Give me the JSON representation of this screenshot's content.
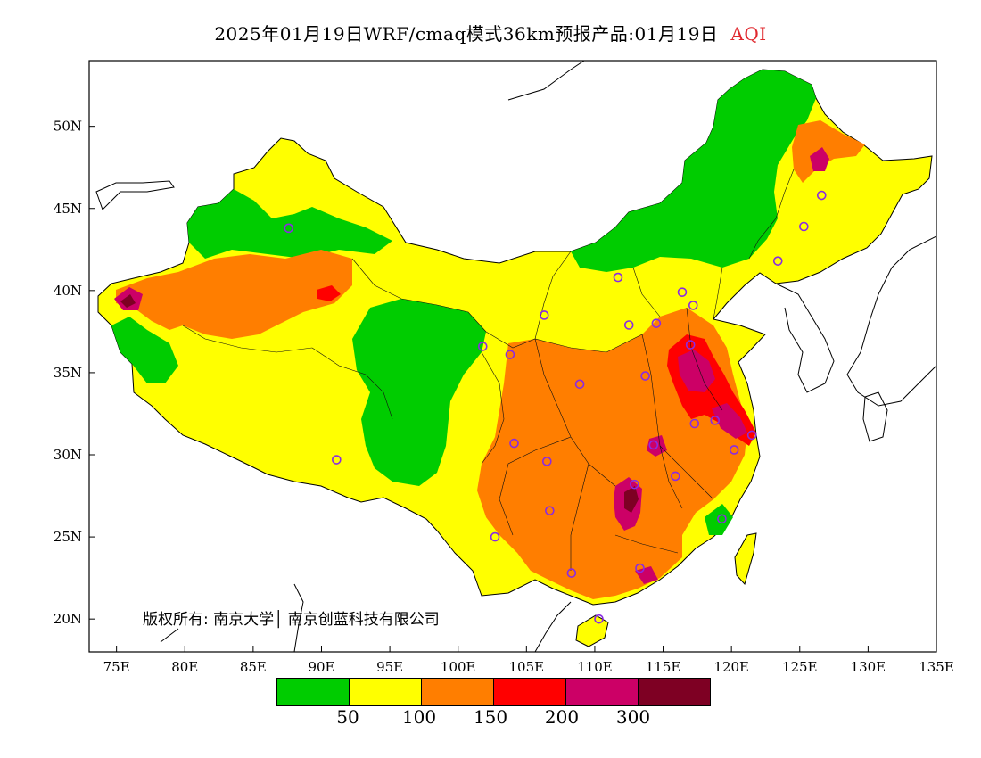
{
  "title": {
    "text": "2025年01月19日WRF/cmaq模式36km预报产品:01月19日",
    "variable": "AQI",
    "variable_color": "#e0282e"
  },
  "map": {
    "x_ticks": [
      "75E",
      "80E",
      "85E",
      "90E",
      "95E",
      "100E",
      "105E",
      "110E",
      "115E",
      "120E",
      "125E",
      "130E",
      "135E"
    ],
    "y_ticks": [
      "50N",
      "45N",
      "40N",
      "35N",
      "30N",
      "25N",
      "20N"
    ],
    "lon_range": [
      73,
      135
    ],
    "lat_range": [
      18,
      54
    ]
  },
  "copyright": "版权所有: 南京大学│ 南京创蓝科技有限公司",
  "legend": {
    "colors": [
      "#00cc00",
      "#ffff00",
      "#ff7e00",
      "#ff0000",
      "#cc0066",
      "#7e0023"
    ],
    "labels": [
      "50",
      "100",
      "150",
      "200",
      "300"
    ],
    "categories": [
      "0-50",
      "50-100",
      "100-150",
      "150-200",
      "200-300",
      ">300"
    ]
  },
  "station_markers": [
    [
      87.6,
      43.8
    ],
    [
      101.8,
      36.6
    ],
    [
      103.8,
      36.1
    ],
    [
      106.3,
      38.5
    ],
    [
      111.7,
      40.8
    ],
    [
      116.4,
      39.9
    ],
    [
      117.2,
      39.1
    ],
    [
      114.5,
      38.0
    ],
    [
      112.5,
      37.9
    ],
    [
      117.0,
      36.7
    ],
    [
      113.7,
      34.8
    ],
    [
      108.9,
      34.3
    ],
    [
      117.3,
      31.9
    ],
    [
      118.8,
      32.1
    ],
    [
      120.2,
      30.3
    ],
    [
      121.5,
      31.2
    ],
    [
      114.3,
      30.6
    ],
    [
      112.9,
      28.2
    ],
    [
      115.9,
      28.7
    ],
    [
      119.3,
      26.1
    ],
    [
      113.3,
      23.1
    ],
    [
      108.3,
      22.8
    ],
    [
      110.3,
      20.0
    ],
    [
      106.7,
      26.6
    ],
    [
      102.7,
      25.0
    ],
    [
      104.1,
      30.7
    ],
    [
      106.5,
      29.6
    ],
    [
      91.1,
      29.7
    ],
    [
      123.4,
      41.8
    ],
    [
      125.3,
      43.9
    ],
    [
      126.6,
      45.8
    ]
  ]
}
